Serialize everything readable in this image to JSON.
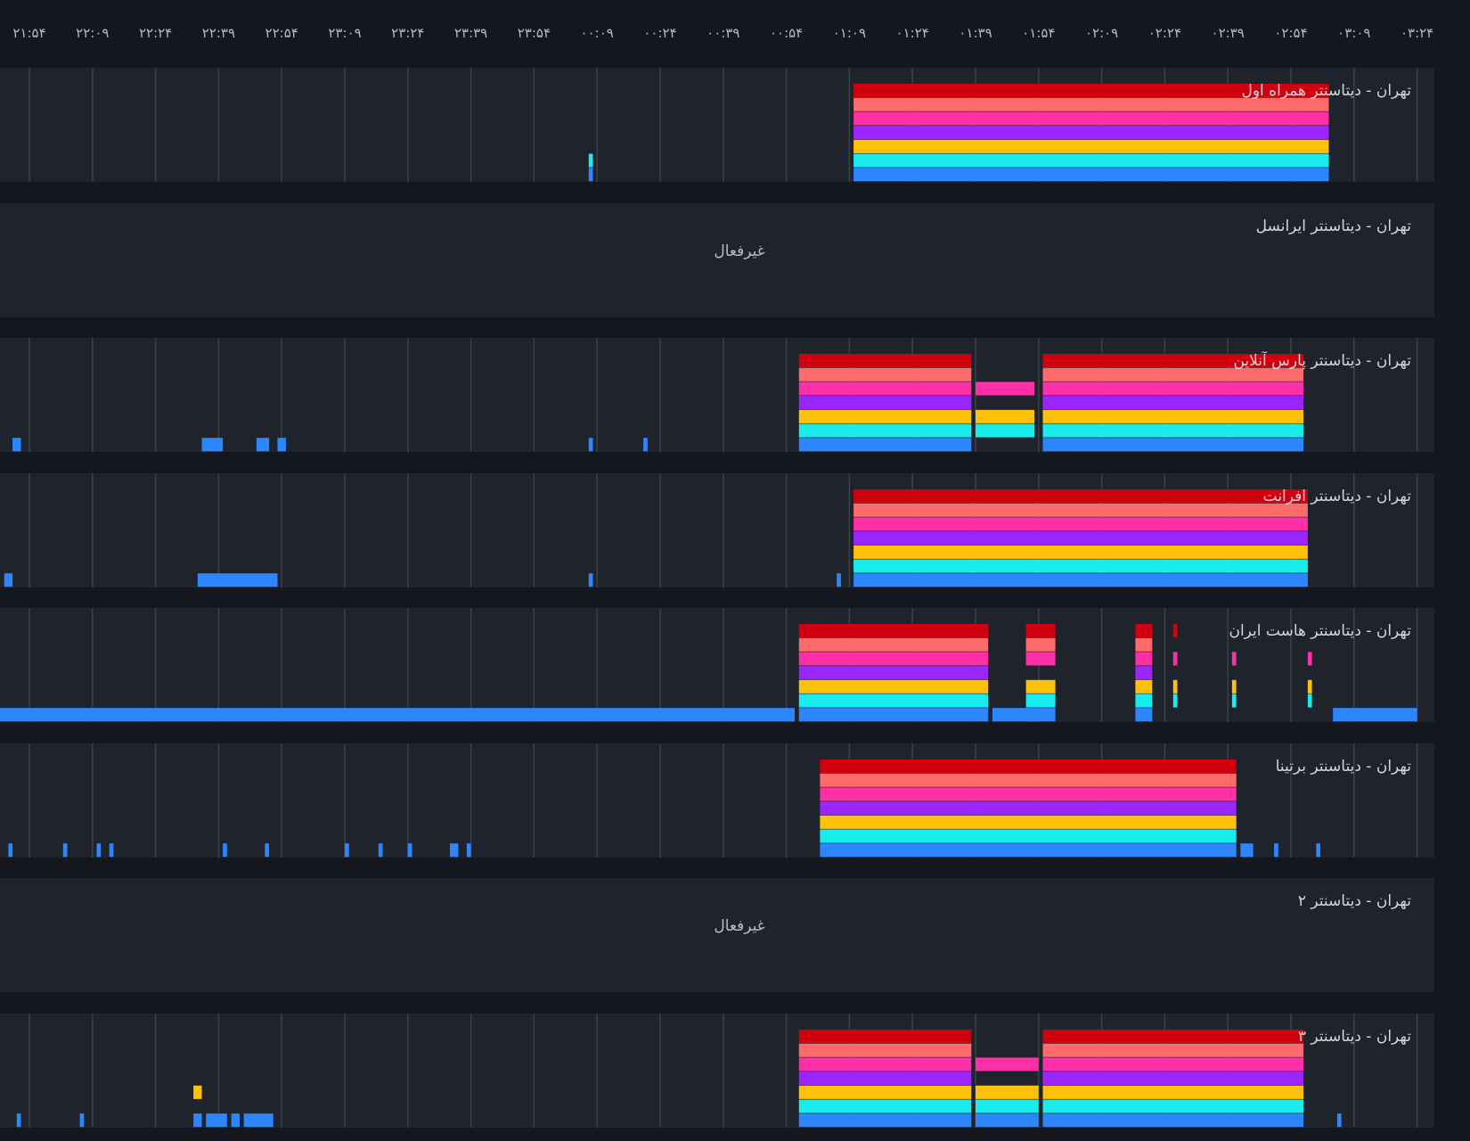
{
  "chart_data": {
    "type": "heatmap",
    "title": "",
    "x_ticks": [
      "۲۱:۵۴",
      "۲۲:۰۹",
      "۲۲:۲۴",
      "۲۲:۳۹",
      "۲۲:۵۴",
      "۲۳:۰۹",
      "۲۳:۲۴",
      "۲۳:۳۹",
      "۲۳:۵۴",
      "۰۰:۰۹",
      "۰۰:۲۴",
      "۰۰:۳۹",
      "۰۰:۵۴",
      "۰۱:۰۹",
      "۰۱:۲۴",
      "۰۱:۳۹",
      "۰۱:۵۴",
      "۰۲:۰۹",
      "۰۲:۲۴",
      "۰۲:۳۹",
      "۰۲:۵۴",
      "۰۳:۰۹",
      "۰۳:۲۴"
    ],
    "x_range": [
      "21:50",
      "03:27"
    ],
    "time_unit": "HH:MM",
    "grid": true,
    "legend": false,
    "band_colors": [
      "#d1000f",
      "#ff6b6b",
      "#ff2fa8",
      "#9b25ff",
      "#ffc107",
      "#19ecec",
      "#2e86ff"
    ],
    "panels": [
      {
        "title": "تهران - دیتاسنتر همراه اول",
        "active": true,
        "blocks": [
          {
            "start": "01:10",
            "end": "03:03",
            "bands": [
              0,
              1,
              2,
              3,
              4,
              5,
              6
            ]
          },
          {
            "start": "00:07",
            "end": "00:08",
            "bands": [
              5,
              6
            ]
          }
        ]
      },
      {
        "title": "تهران - دیتاسنتر ایرانسل",
        "active": false,
        "status": "غیرفعال"
      },
      {
        "title": "تهران - دیتاسنتر پارس آنلاین",
        "active": true,
        "blocks": [
          {
            "start": "00:57",
            "end": "01:38",
            "bands": [
              0,
              1,
              2,
              3,
              4,
              5,
              6
            ]
          },
          {
            "start": "01:39",
            "end": "01:53",
            "bands": [
              2,
              4,
              5
            ]
          },
          {
            "start": "01:55",
            "end": "02:57",
            "bands": [
              0,
              1,
              2,
              3,
              4,
              5,
              6
            ]
          },
          {
            "start": "21:50",
            "end": "21:52",
            "bands": [
              6
            ]
          },
          {
            "start": "22:35",
            "end": "22:40",
            "bands": [
              6
            ]
          },
          {
            "start": "22:48",
            "end": "22:51",
            "bands": [
              6
            ]
          },
          {
            "start": "22:53",
            "end": "22:55",
            "bands": [
              6
            ]
          },
          {
            "start": "00:07",
            "end": "00:08",
            "bands": [
              6
            ]
          },
          {
            "start": "00:20",
            "end": "00:21",
            "bands": [
              6
            ]
          }
        ]
      },
      {
        "title": "تهران - دیتاسنتر افرانت",
        "active": true,
        "blocks": [
          {
            "start": "01:10",
            "end": "02:58",
            "bands": [
              0,
              1,
              2,
              3,
              4,
              5,
              6
            ]
          },
          {
            "start": "01:06",
            "end": "01:07",
            "bands": [
              6
            ]
          },
          {
            "start": "21:48",
            "end": "21:50",
            "bands": [
              6
            ]
          },
          {
            "start": "22:34",
            "end": "22:53",
            "bands": [
              6
            ]
          },
          {
            "start": "00:07",
            "end": "00:08",
            "bands": [
              6
            ]
          }
        ]
      },
      {
        "title": "تهران - دیتاسنتر هاست ایران",
        "active": true,
        "blocks": [
          {
            "start": "21:46",
            "end": "00:56",
            "bands": [
              6
            ]
          },
          {
            "start": "00:57",
            "end": "01:42",
            "bands": [
              0,
              1,
              2,
              3,
              4,
              5,
              6
            ]
          },
          {
            "start": "01:43",
            "end": "01:54",
            "bands": [
              6
            ]
          },
          {
            "start": "01:51",
            "end": "01:58",
            "bands": [
              0,
              1,
              2,
              4,
              5,
              6
            ]
          },
          {
            "start": "02:17",
            "end": "02:21",
            "bands": [
              0,
              1,
              2,
              3,
              4,
              5,
              6
            ]
          },
          {
            "start": "02:26",
            "end": "02:27",
            "bands": [
              0,
              2,
              4,
              5
            ]
          },
          {
            "start": "02:40",
            "end": "02:41",
            "bands": [
              2,
              4,
              5
            ]
          },
          {
            "start": "02:58",
            "end": "02:59",
            "bands": [
              2,
              4,
              5
            ]
          },
          {
            "start": "03:04",
            "end": "03:24",
            "bands": [
              6
            ]
          }
        ]
      },
      {
        "title": "تهران - دیتاسنتر برتینا",
        "active": true,
        "blocks": [
          {
            "start": "01:02",
            "end": "02:41",
            "bands": [
              0,
              1,
              2,
              3,
              4,
              5,
              6
            ]
          },
          {
            "start": "02:42",
            "end": "02:45",
            "bands": [
              6
            ]
          },
          {
            "start": "21:49",
            "end": "21:50",
            "bands": [
              6
            ]
          },
          {
            "start": "22:02",
            "end": "22:03",
            "bands": [
              6
            ]
          },
          {
            "start": "22:10",
            "end": "22:11",
            "bands": [
              6
            ]
          },
          {
            "start": "22:13",
            "end": "22:14",
            "bands": [
              6
            ]
          },
          {
            "start": "22:40",
            "end": "22:41",
            "bands": [
              6
            ]
          },
          {
            "start": "22:50",
            "end": "22:51",
            "bands": [
              6
            ]
          },
          {
            "start": "23:09",
            "end": "23:10",
            "bands": [
              6
            ]
          },
          {
            "start": "23:17",
            "end": "23:18",
            "bands": [
              6
            ]
          },
          {
            "start": "23:24",
            "end": "23:25",
            "bands": [
              6
            ]
          },
          {
            "start": "23:34",
            "end": "23:36",
            "bands": [
              6
            ]
          },
          {
            "start": "23:38",
            "end": "23:39",
            "bands": [
              6
            ]
          },
          {
            "start": "02:50",
            "end": "02:51",
            "bands": [
              6
            ]
          },
          {
            "start": "03:00",
            "end": "03:01",
            "bands": [
              6
            ]
          }
        ]
      },
      {
        "title": "تهران - دیتاسنتر ۲",
        "active": false,
        "status": "غیرفعال"
      },
      {
        "title": "تهران - دیتاسنتر ۳",
        "active": true,
        "blocks": [
          {
            "start": "00:57",
            "end": "01:38",
            "bands": [
              0,
              1,
              2,
              3,
              4,
              5,
              6
            ]
          },
          {
            "start": "01:39",
            "end": "01:54",
            "bands": [
              2,
              4,
              5,
              6
            ]
          },
          {
            "start": "01:55",
            "end": "02:57",
            "bands": [
              0,
              1,
              2,
              3,
              4,
              5,
              6
            ]
          },
          {
            "start": "21:51",
            "end": "21:52",
            "bands": [
              6
            ]
          },
          {
            "start": "22:06",
            "end": "22:07",
            "bands": [
              6
            ]
          },
          {
            "start": "22:33",
            "end": "22:35",
            "bands": [
              4,
              6
            ]
          },
          {
            "start": "22:36",
            "end": "22:41",
            "bands": [
              6
            ]
          },
          {
            "start": "22:42",
            "end": "22:44",
            "bands": [
              6
            ]
          },
          {
            "start": "22:45",
            "end": "22:52",
            "bands": [
              6
            ]
          },
          {
            "start": "03:05",
            "end": "03:06",
            "bands": [
              6
            ]
          }
        ]
      }
    ]
  }
}
